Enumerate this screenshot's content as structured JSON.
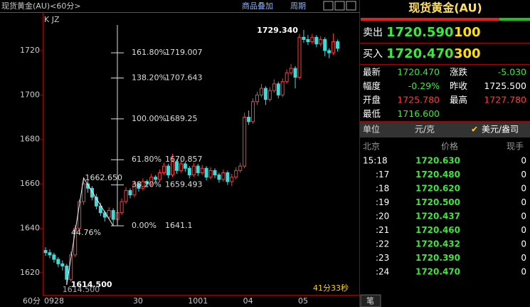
{
  "header": {
    "title": "现货黄金(AU)<60分>",
    "menu": [
      "商品叠加",
      "周期"
    ]
  },
  "chart_data": {
    "type": "candlestick",
    "tag": "K JZ",
    "period": "60分",
    "timer": "41分33秒",
    "categories": [
      "0928",
      null,
      null,
      null,
      null,
      null,
      null,
      null,
      null,
      null,
      null,
      null,
      null,
      null,
      null,
      null,
      null,
      null,
      null,
      null,
      null,
      "30",
      null,
      null,
      null,
      null,
      null,
      null,
      null,
      null,
      null,
      null,
      null,
      null,
      "1001",
      null,
      null,
      null,
      null,
      null,
      null,
      null,
      null,
      null,
      null,
      null,
      null,
      "04",
      null,
      null,
      null,
      null,
      null,
      null,
      null,
      null,
      null,
      null,
      null,
      null,
      "05",
      null,
      null,
      null,
      null,
      null,
      null,
      null,
      null,
      null
    ],
    "open": [
      1630,
      1629,
      1628,
      1626,
      1624,
      1623,
      1617,
      1628,
      1640,
      1652,
      1660,
      1658,
      1654,
      1650,
      1647,
      1645,
      1648,
      1644,
      1647,
      1652,
      1657,
      1655,
      1660,
      1658,
      1661,
      1660,
      1663,
      1662,
      1665,
      1668,
      1664,
      1670,
      1666,
      1669,
      1667,
      1664,
      1668,
      1665,
      1667,
      1663,
      1666,
      1664,
      1662,
      1665,
      1661,
      1663,
      1666,
      1668,
      1690,
      1688,
      1697,
      1700,
      1703,
      1698,
      1702,
      1705,
      1700,
      1706,
      1710,
      1712,
      1708,
      1726,
      1725,
      1724,
      1726,
      1723,
      1725,
      1720,
      1719,
      1724
    ],
    "high": [
      1631.5,
      1630.5,
      1629,
      1627,
      1625.5,
      1624,
      1629.5,
      1641.5,
      1653,
      1662.65,
      1661.5,
      1659,
      1655.5,
      1651.5,
      1648,
      1649.5,
      1649,
      1648.5,
      1653.5,
      1658.5,
      1658,
      1661.5,
      1661,
      1662.5,
      1662,
      1664.5,
      1664,
      1666.5,
      1669.5,
      1669,
      1673.5,
      1671,
      1670.5,
      1670,
      1668,
      1669.5,
      1669,
      1668.5,
      1668,
      1667.5,
      1667,
      1665,
      1666.5,
      1666,
      1664.5,
      1667.5,
      1669.5,
      1692,
      1693,
      1698.5,
      1701.5,
      1705,
      1704,
      1703.5,
      1707,
      1706,
      1707.5,
      1711.5,
      1714,
      1713,
      1727.5,
      1729.34,
      1727,
      1727.5,
      1727,
      1726.5,
      1726,
      1721,
      1727.78,
      1725
    ],
    "low": [
      1627.5,
      1626.5,
      1624.5,
      1622.5,
      1621,
      1614.5,
      1616,
      1627,
      1638.5,
      1650.5,
      1656,
      1652.5,
      1648.5,
      1645.5,
      1643,
      1644,
      1641.1,
      1642.5,
      1646,
      1651,
      1653.5,
      1654,
      1656.5,
      1657,
      1658.5,
      1659,
      1660.5,
      1661,
      1664,
      1662.5,
      1663,
      1664.5,
      1665,
      1665.5,
      1662.5,
      1663,
      1663.5,
      1664,
      1661.5,
      1662,
      1662.5,
      1660.5,
      1661,
      1659.5,
      1659,
      1662,
      1665,
      1667,
      1686.5,
      1687,
      1695.5,
      1699,
      1695.5,
      1697,
      1701,
      1698.5,
      1699,
      1705,
      1709,
      1703,
      1707,
      1723.5,
      1722.5,
      1723,
      1721.5,
      1722,
      1717.5,
      1716.6,
      1718,
      1719.5
    ],
    "close": [
      1629,
      1628,
      1626,
      1624,
      1623,
      1617,
      1628,
      1640,
      1652,
      1660,
      1658,
      1654,
      1650,
      1647,
      1645,
      1648,
      1644,
      1647,
      1652,
      1657,
      1655,
      1660,
      1658,
      1661,
      1660,
      1663,
      1662,
      1665,
      1668,
      1664,
      1670,
      1666,
      1669,
      1667,
      1664,
      1668,
      1665,
      1667,
      1663,
      1666,
      1664,
      1662,
      1665,
      1661,
      1663,
      1666,
      1668,
      1690,
      1688,
      1697,
      1700,
      1703,
      1698,
      1702,
      1705,
      1700,
      1706,
      1710,
      1712,
      1708,
      1726,
      1725,
      1724,
      1726,
      1723,
      1725,
      1720,
      1719,
      1724,
      1721
    ],
    "up_color": "#ff3b3b",
    "down_color": "#3fd9d9",
    "ylim": [
      1610,
      1737
    ],
    "yticks": [
      1620,
      1640,
      1660,
      1680,
      1700,
      1720
    ],
    "high_label": {
      "value": 1729.34,
      "label": "1729.340"
    },
    "low_label": {
      "value": 1614.5,
      "label": "1614.500"
    },
    "swing_label": {
      "value": 1662.65,
      "label": "1662.650"
    },
    "swing_ratio": "44.76%",
    "fib_levels": [
      {
        "value": 1719.007,
        "label": "161.80%"
      },
      {
        "value": 1707.643,
        "label": "138.20%"
      },
      {
        "value": 1689.25,
        "label": "100.00%"
      },
      {
        "value": 1670.857,
        "label": "61.80%"
      },
      {
        "value": 1659.493,
        "label": "38.20%"
      },
      {
        "value": 1641.1,
        "label": "0.00%"
      }
    ]
  },
  "quote_panel": {
    "title": "现货黄金(AU)",
    "sell": {
      "label": "卖出",
      "price": "1720.590",
      "volume": "100"
    },
    "buy": {
      "label": "买入",
      "price": "1720.470",
      "volume": "300"
    },
    "stats": [
      [
        "最新",
        "1720.470",
        "涨跌",
        "-5.030"
      ],
      [
        "幅度",
        "-0.29%",
        "昨收",
        "1725.500"
      ],
      [
        "开盘",
        "1725.780",
        "最高",
        "1727.780"
      ],
      [
        "最低",
        "1716.600"
      ]
    ],
    "unit": {
      "label": "单位",
      "option1": "元/克",
      "option2": "美元/盎司"
    }
  },
  "ticks_table": {
    "header": [
      "北京",
      "价格",
      "现手"
    ],
    "rows": [
      [
        "15:18",
        "1720.630",
        "0"
      ],
      [
        ":17",
        "1720.480",
        "0"
      ],
      [
        ":18",
        "1720.620",
        "0"
      ],
      [
        ":19",
        "1720.500",
        "0"
      ],
      [
        ":20",
        "1720.437",
        "0"
      ],
      [
        ":21",
        "1720.460",
        "0"
      ],
      [
        ":22",
        "1720.432",
        "0"
      ],
      [
        ":23",
        "1720.390",
        "0"
      ],
      [
        ":24",
        "1720.470",
        "0"
      ]
    ],
    "tab": "笔"
  }
}
